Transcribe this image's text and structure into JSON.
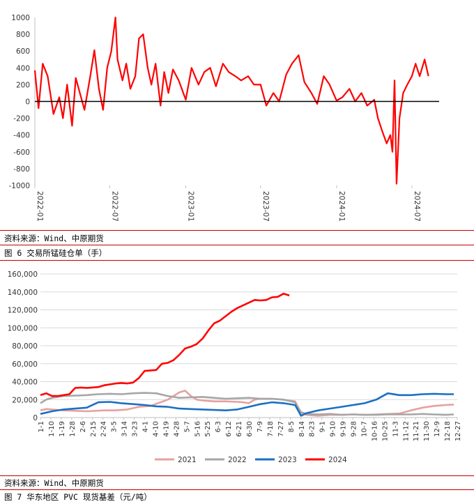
{
  "sources": {
    "panel1": "资料来源：Wind、中原期货",
    "panel2": "资料来源：Wind、中原期货"
  },
  "figure_titles": {
    "figure6": "图 6  交易所锰硅仓单（手）",
    "figure7": "图 7  华东地区 PVC 现货基差（元/吨）"
  },
  "colors": {
    "red": "#ff0000",
    "pink": "#e6a0a0",
    "gray": "#a6a6a6",
    "blue": "#1a6fc4",
    "rule": "#c00000"
  },
  "chart_data": [
    {
      "type": "line",
      "title": "",
      "x_ticks": [
        "2022-01",
        "2022-07",
        "2023-01",
        "2023-07",
        "2024-01",
        "2024-07"
      ],
      "ylim": [
        -1000,
        1000
      ],
      "y_ticks": [
        -1000,
        -800,
        -600,
        -400,
        -200,
        0,
        200,
        400,
        600,
        800,
        1000
      ],
      "zero_line": true,
      "series": [
        {
          "color": "#ff0000",
          "x": [
            "2022-01-01",
            "2022-01-10",
            "2022-01-20",
            "2022-02-01",
            "2022-02-15",
            "2022-03-01",
            "2022-03-10",
            "2022-03-20",
            "2022-04-01",
            "2022-04-10",
            "2022-04-20",
            "2022-05-01",
            "2022-05-15",
            "2022-05-25",
            "2022-06-05",
            "2022-06-15",
            "2022-06-25",
            "2022-07-05",
            "2022-07-15",
            "2022-07-20",
            "2022-08-01",
            "2022-08-10",
            "2022-08-20",
            "2022-09-01",
            "2022-09-10",
            "2022-09-20",
            "2022-10-01",
            "2022-10-10",
            "2022-10-20",
            "2022-11-01",
            "2022-11-10",
            "2022-11-20",
            "2022-12-01",
            "2022-12-15",
            "2023-01-01",
            "2023-01-15",
            "2023-02-01",
            "2023-02-15",
            "2023-03-01",
            "2023-03-15",
            "2023-04-01",
            "2023-04-15",
            "2023-05-01",
            "2023-05-15",
            "2023-06-01",
            "2023-06-15",
            "2023-07-01",
            "2023-07-15",
            "2023-08-01",
            "2023-08-15",
            "2023-09-01",
            "2023-09-15",
            "2023-10-01",
            "2023-10-15",
            "2023-11-01",
            "2023-11-15",
            "2023-12-01",
            "2023-12-15",
            "2024-01-01",
            "2024-01-15",
            "2024-02-01",
            "2024-02-15",
            "2024-03-01",
            "2024-03-15",
            "2024-04-01",
            "2024-04-10",
            "2024-04-20",
            "2024-05-01",
            "2024-05-10",
            "2024-05-15",
            "2024-05-20",
            "2024-05-25",
            "2024-06-01",
            "2024-06-10",
            "2024-06-20",
            "2024-07-01",
            "2024-07-10",
            "2024-07-20",
            "2024-08-01",
            "2024-08-10"
          ],
          "y": [
            370,
            -80,
            450,
            300,
            -150,
            50,
            -200,
            200,
            -290,
            280,
            100,
            -100,
            300,
            610,
            150,
            -100,
            400,
            600,
            1000,
            500,
            250,
            450,
            150,
            300,
            750,
            800,
            400,
            200,
            450,
            -50,
            350,
            100,
            380,
            250,
            20,
            400,
            200,
            350,
            400,
            180,
            450,
            350,
            300,
            250,
            300,
            200,
            200,
            -50,
            100,
            0,
            320,
            450,
            550,
            230,
            100,
            -30,
            300,
            200,
            10,
            50,
            150,
            0,
            100,
            -50,
            20,
            -200,
            -350,
            -500,
            -400,
            -600,
            250,
            -980,
            -200,
            100,
            200,
            300,
            450,
            300,
            500,
            300
          ]
        }
      ]
    },
    {
      "type": "line",
      "title": "",
      "x_ticks": [
        "1-1",
        "1-10",
        "1-19",
        "1-28",
        "2-6",
        "2-15",
        "2-24",
        "3-5",
        "3-14",
        "3-23",
        "4-1",
        "4-10",
        "4-19",
        "4-28",
        "5-7",
        "5-16",
        "5-25",
        "6-3",
        "6-12",
        "6-21",
        "6-30",
        "7-9",
        "7-18",
        "7-27",
        "8-5",
        "8-14",
        "8-23",
        "9-1",
        "9-10",
        "9-19",
        "9-28",
        "10-7",
        "10-16",
        "10-25",
        "11-3",
        "11-12",
        "11-21",
        "11-30",
        "12-9",
        "12-18",
        "12-27"
      ],
      "ylim": [
        0,
        160000
      ],
      "y_ticks": [
        0,
        20000,
        40000,
        60000,
        80000,
        100000,
        120000,
        140000,
        160000
      ],
      "y_tick_labels": [
        "0",
        "20,000",
        "40,000",
        "60,000",
        "80,000",
        "100,000",
        "120,000",
        "140,000",
        "160,000"
      ],
      "legend_position": "bottom",
      "series": [
        {
          "name": "2021",
          "color": "#e6a0a0",
          "x": [
            0,
            5,
            10,
            20,
            30,
            40,
            55,
            65,
            75,
            85,
            95,
            110,
            120,
            125,
            130,
            135,
            140,
            150,
            160,
            170,
            175,
            180,
            185,
            190,
            200,
            210,
            220,
            225,
            230,
            235,
            240,
            250,
            260,
            270,
            280,
            290,
            300,
            310,
            320,
            330,
            340,
            350,
            357
          ],
          "y": [
            8000,
            9500,
            9000,
            8000,
            7500,
            7000,
            8000,
            8000,
            9000,
            12000,
            13000,
            20000,
            28000,
            30000,
            24000,
            20000,
            19000,
            18000,
            18000,
            17500,
            17000,
            16000,
            20000,
            21000,
            21000,
            20000,
            18000,
            5000,
            3000,
            2500,
            2000,
            3000,
            3000,
            3500,
            3000,
            3500,
            4000,
            4500,
            8000,
            11000,
            13000,
            14000,
            14500
          ]
        },
        {
          "name": "2022",
          "color": "#a6a6a6",
          "x": [
            0,
            5,
            10,
            20,
            30,
            40,
            50,
            60,
            70,
            80,
            90,
            100,
            110,
            120,
            130,
            140,
            150,
            160,
            170,
            180,
            190,
            200,
            210,
            220,
            225,
            230,
            240,
            250,
            260,
            270,
            280,
            290,
            300,
            310,
            320,
            330,
            340,
            350,
            357
          ],
          "y": [
            16000,
            20000,
            22000,
            24000,
            24500,
            25000,
            26000,
            26500,
            26000,
            27000,
            27500,
            27000,
            24000,
            22000,
            22500,
            23000,
            22000,
            21000,
            21500,
            22000,
            21000,
            21000,
            20000,
            17000,
            6000,
            4000,
            3500,
            4000,
            3000,
            3500,
            3000,
            3000,
            3500,
            3500,
            3500,
            4000,
            3500,
            3000,
            3500
          ]
        },
        {
          "name": "2023",
          "color": "#1a6fc4",
          "x": [
            0,
            10,
            20,
            30,
            40,
            50,
            60,
            70,
            80,
            90,
            100,
            110,
            120,
            130,
            140,
            150,
            160,
            170,
            180,
            190,
            200,
            210,
            220,
            225,
            230,
            240,
            250,
            260,
            270,
            280,
            290,
            300,
            310,
            320,
            330,
            340,
            350,
            357
          ],
          "y": [
            4000,
            7000,
            9000,
            10000,
            11000,
            17000,
            17500,
            16000,
            15000,
            14000,
            12500,
            12000,
            10000,
            9500,
            9000,
            8500,
            8000,
            9000,
            12000,
            15000,
            17000,
            16000,
            14000,
            2000,
            5000,
            8000,
            10000,
            12000,
            14000,
            16000,
            20000,
            27000,
            25000,
            25000,
            26000,
            26500,
            26000,
            26000
          ]
        },
        {
          "name": "2024",
          "color": "#ff0000",
          "x": [
            0,
            5,
            10,
            15,
            20,
            25,
            30,
            35,
            40,
            50,
            55,
            60,
            65,
            70,
            75,
            80,
            85,
            90,
            95,
            100,
            105,
            110,
            115,
            120,
            125,
            130,
            135,
            140,
            145,
            150,
            155,
            160,
            165,
            170,
            175,
            180,
            185,
            190,
            195,
            200,
            205,
            210,
            215
          ],
          "y": [
            25000,
            27000,
            24000,
            24000,
            25000,
            26000,
            33000,
            33500,
            33000,
            34000,
            36000,
            37000,
            38000,
            38500,
            38000,
            39000,
            44000,
            52000,
            52500,
            53000,
            60000,
            61000,
            64000,
            70000,
            77000,
            79000,
            82000,
            88000,
            97000,
            105000,
            108000,
            113000,
            118000,
            122000,
            125000,
            128000,
            131000,
            130500,
            131000,
            134000,
            134500,
            138000,
            136000
          ]
        }
      ]
    }
  ]
}
